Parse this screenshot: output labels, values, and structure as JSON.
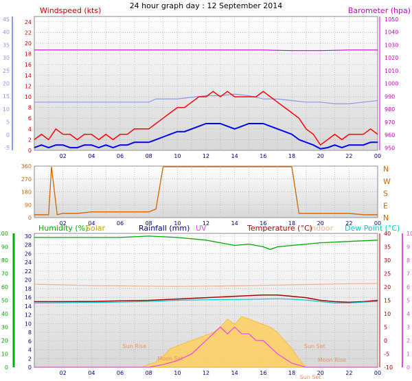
{
  "page_title": "24 hour graph day : 12 September 2014",
  "colors": {
    "wind_avg": "#0000ff",
    "wind_gust": "#ff0000",
    "barometer": "#cc00cc",
    "wind_dir": "#cc6600",
    "humidity": "#00aa00",
    "solar": "#ffc000",
    "rainfall": "#000080",
    "uv": "#ee44ee",
    "temperature": "#aa0000",
    "indoor": "#f0b090",
    "dewpoint": "#00cccc",
    "windspeed_axis": "#8899ee"
  },
  "chart_data": [
    {
      "id": "wind-baro",
      "type": "line",
      "ylabel_left": "Windspeed (kts)",
      "ylabel_right": "Barometer (hpa)",
      "x_ticks": [
        "02",
        "04",
        "06",
        "08",
        "10",
        "12",
        "14",
        "16",
        "18",
        "20",
        "22",
        "00"
      ],
      "y_ticks_left_kts": [
        "24",
        "22",
        "20",
        "18",
        "16",
        "14",
        "12",
        "10",
        "8",
        "6",
        "4",
        "2",
        "0"
      ],
      "y_ticks_left_alt": [
        "45",
        "40",
        "35",
        "30",
        "25",
        "20",
        "15",
        "10",
        "5",
        "0",
        "-5"
      ],
      "y_ticks_right": [
        "1050",
        "1040",
        "1030",
        "1020",
        "1010",
        "1000",
        "990",
        "980",
        "970",
        "960",
        "950"
      ],
      "ylim_left": [
        0,
        25
      ],
      "ylim_right": [
        948,
        1052
      ],
      "xlim_hours": [
        0,
        24
      ],
      "grid": true,
      "series": [
        {
          "key": "barometer",
          "values_x": [
            0,
            2,
            4,
            6,
            8,
            10,
            12,
            14,
            16,
            18,
            20,
            22,
            24
          ],
          "values_y": [
            1026,
            1026,
            1026,
            1026,
            1026,
            1026,
            1026,
            1026,
            1026,
            1025.5,
            1025.5,
            1026,
            1026
          ]
        },
        {
          "key": "windspeed_axis",
          "values_x": [
            0,
            1,
            2,
            4,
            6,
            8,
            8.5,
            10,
            12,
            12.5,
            13,
            14,
            15,
            16,
            17,
            18,
            19,
            20,
            21,
            22,
            23,
            24
          ],
          "values_y": [
            15,
            15,
            15,
            15,
            15,
            15,
            16,
            16,
            17,
            17,
            17,
            17.5,
            17,
            16,
            16,
            15.5,
            15,
            15,
            14.5,
            14.5,
            15,
            15.5
          ]
        },
        {
          "key": "wind_gust",
          "values_x": [
            0,
            0.5,
            1,
            1.5,
            2,
            2.5,
            3,
            3.5,
            4,
            4.5,
            5,
            5.5,
            6,
            6.5,
            7,
            7.5,
            8,
            8.5,
            9,
            9.5,
            10,
            10.5,
            11,
            11.5,
            12,
            12.5,
            13,
            13.5,
            14,
            14.5,
            15,
            15.5,
            16,
            16.5,
            17,
            17.5,
            18,
            18.5,
            19,
            19.5,
            20,
            20.5,
            21,
            21.5,
            22,
            22.5,
            23,
            23.5,
            24
          ],
          "values_y": [
            2,
            3,
            2,
            4,
            3,
            3,
            2,
            3,
            3,
            2,
            3,
            2,
            3,
            3,
            4,
            4,
            4,
            5,
            6,
            7,
            8,
            8,
            9,
            10,
            10,
            11,
            10,
            11,
            10,
            10,
            10,
            10,
            11,
            10,
            9,
            8,
            7,
            6,
            4,
            3,
            1,
            2,
            3,
            2,
            3,
            3,
            3,
            4,
            3
          ]
        },
        {
          "key": "wind_avg",
          "values_x": [
            0,
            0.5,
            1,
            1.5,
            2,
            2.5,
            3,
            3.5,
            4,
            4.5,
            5,
            5.5,
            6,
            6.5,
            7,
            7.5,
            8,
            8.5,
            9,
            9.5,
            10,
            10.5,
            11,
            11.5,
            12,
            12.5,
            13,
            13.5,
            14,
            14.5,
            15,
            15.5,
            16,
            16.5,
            17,
            17.5,
            18,
            18.5,
            19,
            19.5,
            20,
            20.5,
            21,
            21.5,
            22,
            22.5,
            23,
            23.5,
            24
          ],
          "values_y": [
            0.5,
            1,
            0.5,
            1,
            1,
            0.5,
            0.5,
            1,
            1,
            0.5,
            1,
            0.5,
            1,
            1,
            1.5,
            1.5,
            1.5,
            2,
            2.5,
            3,
            3.5,
            3.5,
            4,
            4.5,
            5,
            5,
            5,
            4.5,
            4,
            4.5,
            5,
            5,
            5,
            4.5,
            4,
            3.5,
            3,
            2,
            1.5,
            1,
            0.3,
            0.5,
            1,
            0.5,
            1,
            1,
            1,
            1.5,
            1.5
          ]
        }
      ]
    },
    {
      "id": "wind-direction",
      "type": "line",
      "y_ticks_left": [
        "360",
        "270",
        "180",
        "90",
        "0"
      ],
      "y_ticks_right": [
        "N",
        "W",
        "S",
        "E",
        "N"
      ],
      "ylim": [
        0,
        360
      ],
      "series": [
        {
          "key": "wind_dir",
          "values_x": [
            0,
            0.5,
            1,
            1.2,
            1.6,
            2,
            3,
            4,
            5,
            6,
            7,
            8,
            8.5,
            9,
            9.5,
            10,
            11,
            12,
            13,
            14,
            15,
            16,
            17,
            17.5,
            18,
            18.5,
            19,
            20,
            21,
            22,
            23,
            24
          ],
          "values_y": [
            20,
            20,
            20,
            355,
            20,
            30,
            30,
            40,
            40,
            40,
            40,
            40,
            60,
            355,
            355,
            355,
            355,
            355,
            355,
            355,
            355,
            355,
            355,
            355,
            355,
            30,
            30,
            30,
            30,
            30,
            20,
            20
          ]
        }
      ]
    },
    {
      "id": "humidity-temp",
      "type": "line",
      "legend": [
        "Humidity (%)",
        "Solar",
        "Rainfall (mm)",
        "UV",
        "Temperature (°C)",
        "Indoor",
        "Dew Point (°C)"
      ],
      "y_ticks_humidity": [
        "100",
        "90",
        "80",
        "70",
        "60",
        "50",
        "40",
        "30",
        "20",
        "10",
        "0"
      ],
      "y_ticks_rain": [
        "30",
        "28",
        "26",
        "24",
        "22",
        "20",
        "18",
        "16",
        "14",
        "12",
        "10",
        "8",
        "6",
        "4",
        "2",
        "0"
      ],
      "y_ticks_temp": [
        "40",
        "35",
        "30",
        "25",
        "20",
        "15",
        "10",
        "5",
        "0",
        "-5",
        "-10"
      ],
      "y_ticks_uv": [
        "10",
        "9",
        "8",
        "7",
        "6",
        "5",
        "4",
        "3",
        "2",
        "1",
        "0"
      ],
      "ylim_temp": [
        -10,
        40
      ],
      "annotations": [
        "Sun Rise",
        "Moon Set",
        "Sun Set",
        "Moon Rise",
        "Sun Set"
      ],
      "series": [
        {
          "key": "humidity",
          "values_x": [
            0,
            2,
            4,
            6,
            8,
            10,
            12,
            13,
            14,
            15,
            16,
            16.5,
            17,
            18,
            19,
            20,
            22,
            24
          ],
          "values_y": [
            97,
            97,
            97,
            97,
            98,
            97,
            95,
            93,
            91,
            92,
            90,
            88,
            90,
            91,
            92,
            93,
            94,
            95
          ]
        },
        {
          "key": "temperature",
          "values_x": [
            0,
            2,
            4,
            6,
            8,
            10,
            12,
            14,
            16,
            17,
            18,
            19,
            20,
            21,
            22,
            23,
            24
          ],
          "values_y": [
            14.5,
            14.5,
            14.6,
            14.8,
            15,
            15.5,
            16,
            16.5,
            17,
            17,
            16.5,
            16,
            15,
            14.5,
            14.3,
            14.5,
            15
          ]
        },
        {
          "key": "dewpoint",
          "values_x": [
            0,
            2,
            4,
            6,
            8,
            10,
            12,
            14,
            16,
            17,
            18,
            19,
            20,
            21,
            22,
            23,
            24
          ],
          "values_y": [
            14,
            14.1,
            14.2,
            14.3,
            14.6,
            15,
            15.2,
            15.3,
            15.5,
            15.6,
            15.4,
            15.1,
            14.5,
            14,
            14,
            14.3,
            14.6
          ]
        },
        {
          "key": "indoor",
          "values_x": [
            0,
            2,
            4,
            6,
            8,
            10,
            12,
            14,
            16,
            18,
            20,
            22,
            24
          ],
          "values_y": [
            21,
            20.8,
            20.5,
            20.4,
            20.3,
            20.2,
            20.3,
            20.4,
            20.6,
            20.8,
            21,
            21.2,
            21.3
          ]
        },
        {
          "key": "solar",
          "values_x": [
            0,
            7.5,
            8,
            8.5,
            9,
            9.5,
            10,
            10.5,
            11,
            11.5,
            12,
            12.5,
            13,
            13.5,
            14,
            14.5,
            15,
            15.5,
            16,
            16.5,
            17,
            17.5,
            18,
            18.5,
            19,
            24
          ],
          "values_y": [
            -10,
            -10,
            -9,
            -8,
            -6,
            -3,
            -2,
            -1,
            0,
            1,
            2,
            3,
            5,
            8,
            6,
            9,
            8,
            7,
            6,
            5,
            3,
            0,
            -3,
            -7,
            -10,
            -10
          ]
        },
        {
          "key": "uv",
          "values_x": [
            0,
            7.5,
            8,
            9,
            10,
            11,
            11.5,
            12,
            12.5,
            13,
            13.5,
            14,
            14.5,
            15,
            15.5,
            16,
            16.5,
            17,
            18,
            19,
            24
          ],
          "values_y": [
            0,
            0,
            0,
            0.2,
            0.5,
            1,
            1.5,
            2,
            2.5,
            3,
            2.5,
            3,
            2.5,
            2.5,
            2,
            2,
            1.5,
            1,
            0.3,
            0,
            0
          ]
        }
      ]
    }
  ]
}
